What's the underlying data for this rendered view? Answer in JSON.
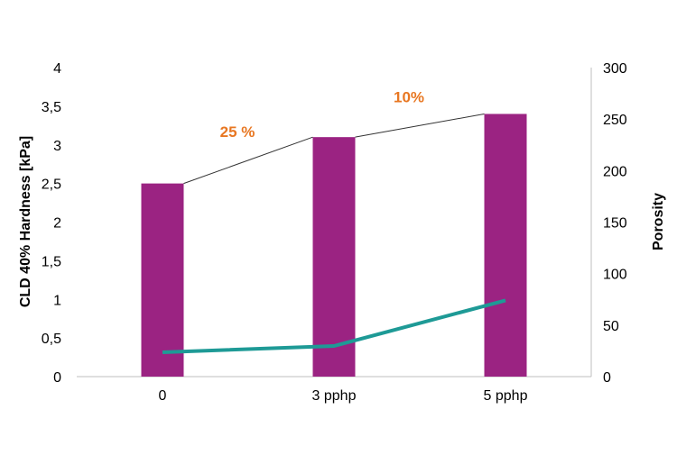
{
  "chart_data": {
    "type": "bar+line",
    "categories": [
      "0",
      "3 pphp",
      "5 pphp"
    ],
    "series": [
      {
        "axis": "left",
        "type": "bar",
        "values": [
          2.5,
          3.1,
          3.4
        ],
        "color": "#9B2382"
      },
      {
        "axis": "right",
        "type": "line",
        "values": [
          23.6,
          29.7,
          74
        ],
        "color": "#1E9A96"
      }
    ],
    "ylabel": "CLD 40% Hardness [kPa]",
    "y2label": "Porosity",
    "ylim": [
      0,
      4
    ],
    "y2lim": [
      0,
      300
    ],
    "yticks": [
      "0",
      "0,5",
      "1",
      "1,5",
      "2",
      "2,5",
      "3",
      "3,5",
      "4"
    ],
    "y2ticks": [
      "0",
      "50",
      "100",
      "150",
      "200",
      "250",
      "300"
    ],
    "annotations": [
      {
        "text": "25 %",
        "between": [
          "0",
          "3 pphp"
        ]
      },
      {
        "text": "10%",
        "between": [
          "3 pphp",
          "5 pphp"
        ]
      }
    ],
    "annotation_color": "#E87722",
    "grid": false
  }
}
